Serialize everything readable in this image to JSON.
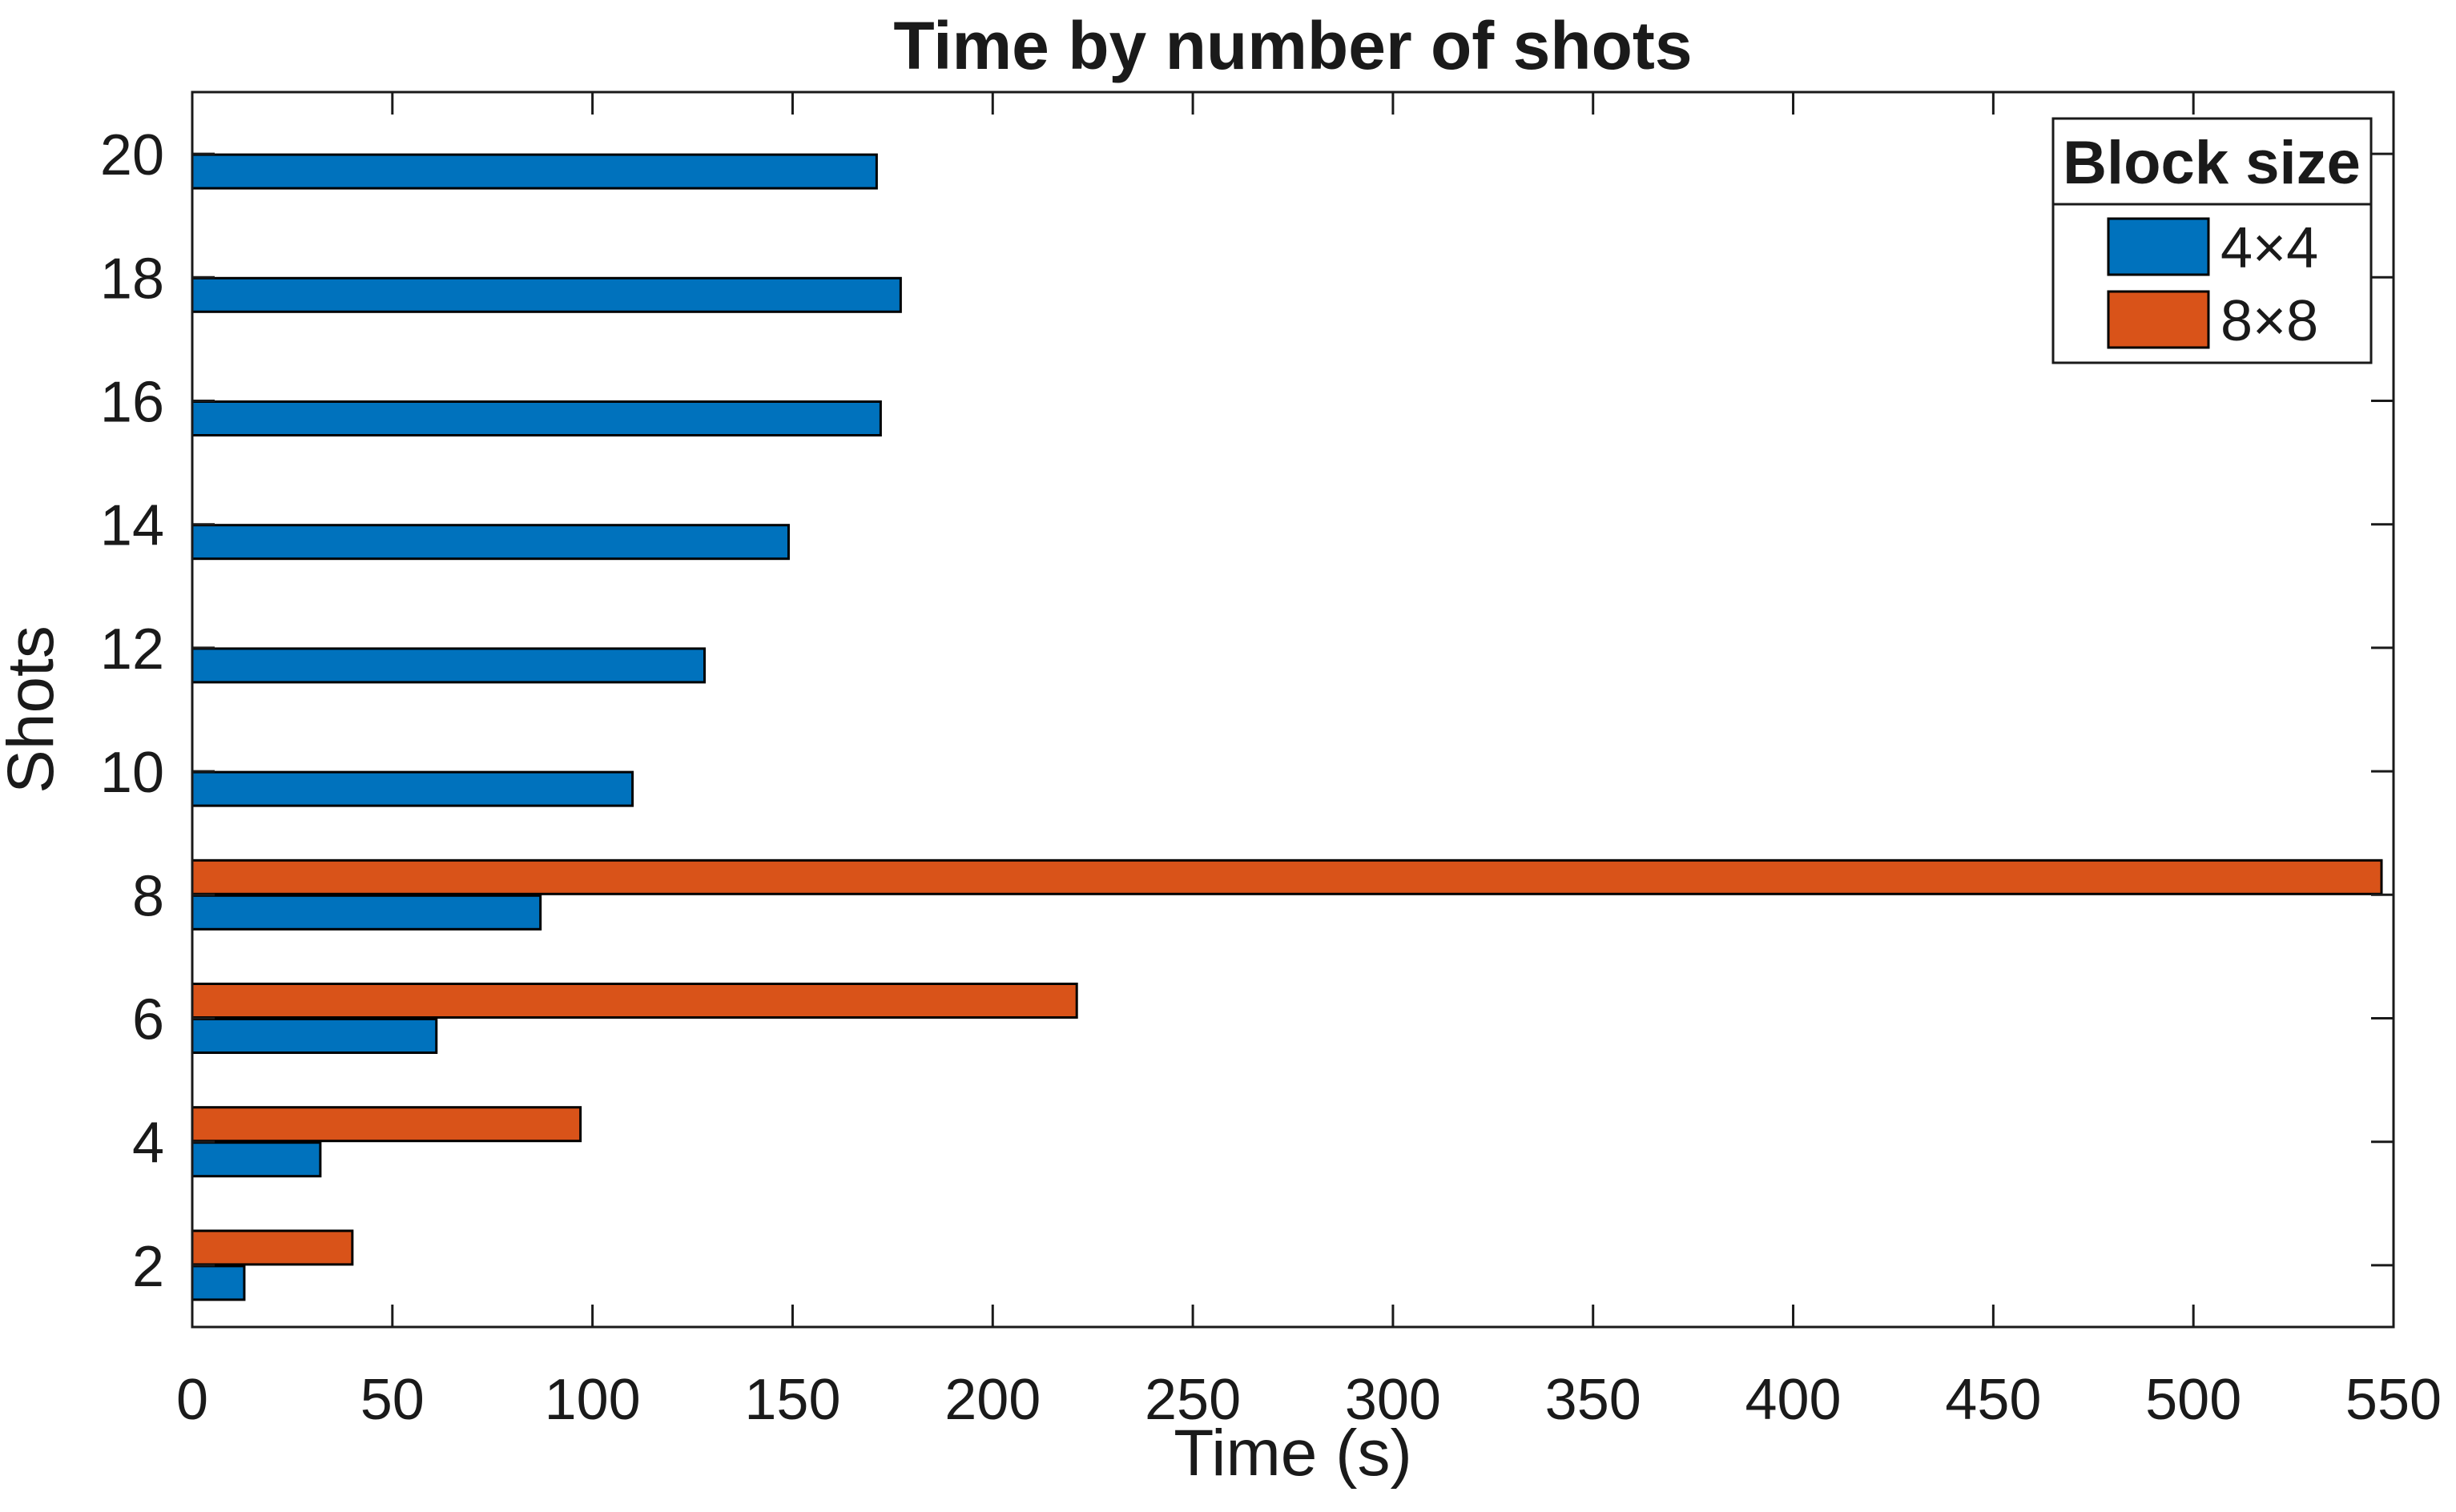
{
  "figure": {
    "background": "#ffffff",
    "text_color": "#262626",
    "axis_color": "#1a1a1a"
  },
  "chart_data": {
    "type": "bar",
    "orientation": "horizontal",
    "title": "Time by number of shots",
    "xlabel": "Time (s)",
    "ylabel": "Shots",
    "categories": [
      2,
      4,
      6,
      8,
      10,
      12,
      14,
      16,
      18,
      20
    ],
    "series": [
      {
        "name": "4×4",
        "color": "#0072BD",
        "values": [
          13,
          32,
          61,
          87,
          110,
          128,
          149,
          172,
          177,
          171
        ]
      },
      {
        "name": "8×8",
        "color": "#D95319",
        "values": [
          40,
          97,
          221,
          547,
          null,
          null,
          null,
          null,
          null,
          null
        ]
      }
    ],
    "xlim": [
      0,
      550
    ],
    "ylim": [
      1,
      21
    ],
    "xticks": [
      0,
      50,
      100,
      150,
      200,
      250,
      300,
      350,
      400,
      450,
      500,
      550
    ],
    "yticks": [
      2,
      4,
      6,
      8,
      10,
      12,
      14,
      16,
      18,
      20
    ],
    "bar_edge_color": "#000000",
    "grid": false,
    "legend": {
      "title": "Block size",
      "position": "northeast",
      "entries": [
        {
          "label": "4×4",
          "color": "#0072BD"
        },
        {
          "label": "8×8",
          "color": "#D95319"
        }
      ]
    }
  }
}
